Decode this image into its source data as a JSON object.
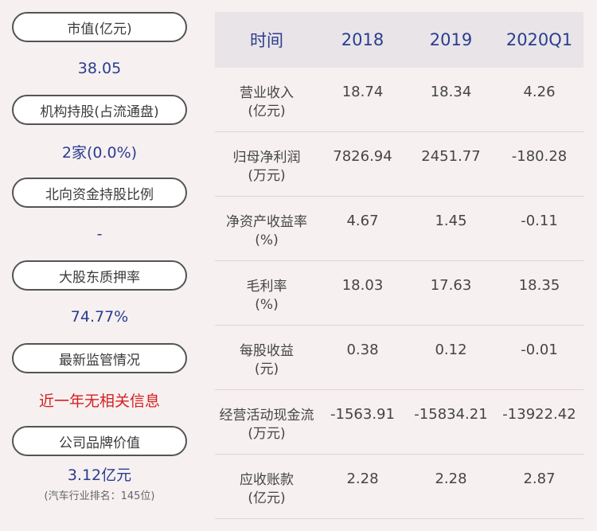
{
  "left_panel": [
    {
      "label": "市值(亿元)",
      "value": "38.05"
    },
    {
      "label": "机构持股(占流通盘)",
      "value": "2家(0.0%)"
    },
    {
      "label": "北向资金持股比例",
      "value": "-"
    },
    {
      "label": "大股东质押率",
      "value": "74.77%"
    },
    {
      "label": "最新监管情况",
      "value": "近一年无相关信息",
      "color": "#d81e1e"
    },
    {
      "label": "公司品牌价值",
      "value": "3.12亿元",
      "sub": "(汽车行业排名：145位)"
    }
  ],
  "table": {
    "headers": [
      "时间",
      "2018",
      "2019",
      "2020Q1"
    ],
    "rows": [
      {
        "label": "营业收入",
        "unit": "(亿元)",
        "values": [
          "18.74",
          "18.34",
          "4.26"
        ]
      },
      {
        "label": "归母净利润",
        "unit": "(万元)",
        "values": [
          "7826.94",
          "2451.77",
          "-180.28"
        ]
      },
      {
        "label": "净资产收益率",
        "unit": "(%)",
        "values": [
          "4.67",
          "1.45",
          "-0.11"
        ]
      },
      {
        "label": "毛利率",
        "unit": "(%)",
        "values": [
          "18.03",
          "17.63",
          "18.35"
        ]
      },
      {
        "label": "每股收益",
        "unit": "(元)",
        "values": [
          "0.38",
          "0.12",
          "-0.01"
        ]
      },
      {
        "label": "经营活动现金流",
        "unit": "(万元)",
        "values": [
          "-1563.91",
          "-15834.21",
          "-13922.42"
        ]
      },
      {
        "label": "应收账款",
        "unit": "(亿元)",
        "values": [
          "2.28",
          "2.28",
          "2.87"
        ]
      }
    ]
  },
  "colors": {
    "background": "#f6f0f1",
    "value_blue": "#2b3d8f",
    "alert_red": "#d81e1e",
    "header_bg": "#e9e4e8"
  }
}
